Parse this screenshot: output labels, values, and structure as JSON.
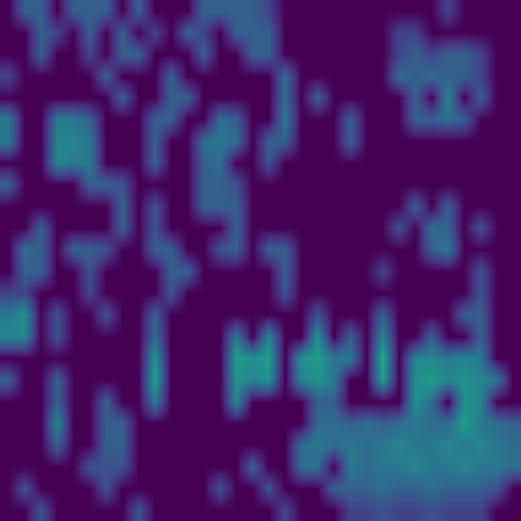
{
  "chart_data": {
    "type": "heatmap",
    "color": "Viridis",
    "tick_labels": false,
    "grid": false,
    "xlim": [
      -0.5,
      31.5
    ],
    "ylim": [
      23.5,
      -0.5
    ],
    "zlim": [
      0,
      1
    ],
    "cells": [
      [
        0,
        0.3,
        0.3,
        0,
        0.3,
        0.3,
        0.3,
        0,
        0.3,
        0,
        0,
        0,
        0.3,
        0.3,
        0.3,
        0.3,
        0.2,
        0,
        0,
        0,
        0,
        0,
        0,
        0,
        0,
        0,
        0,
        0.2,
        0,
        0,
        0,
        0
      ],
      [
        0,
        0,
        0.3,
        0.2,
        0,
        0.3,
        0,
        0.3,
        0,
        0.2,
        0,
        0.3,
        0.2,
        0,
        0.3,
        0.3,
        0.3,
        0,
        0,
        0,
        0,
        0,
        0,
        0,
        0.2,
        0.2,
        0,
        0,
        0,
        0,
        0,
        0
      ],
      [
        0,
        0,
        0.3,
        0,
        0,
        0.2,
        0,
        0.3,
        0.3,
        0,
        0,
        0,
        0.3,
        0,
        0,
        0.3,
        0.3,
        0,
        0,
        0,
        0,
        0,
        0,
        0,
        0.2,
        0.3,
        0.2,
        0.3,
        0.3,
        0.2,
        0,
        0
      ],
      [
        0.2,
        0,
        0,
        0,
        0,
        0,
        0.3,
        0,
        0,
        0,
        0.3,
        0,
        0,
        0,
        0,
        0,
        0,
        0.35,
        0,
        0,
        0,
        0,
        0,
        0,
        0.35,
        0.3,
        0.35,
        0.3,
        0.3,
        0.2,
        0,
        0
      ],
      [
        0,
        0,
        0,
        0,
        0,
        0,
        0,
        0.3,
        0,
        0,
        0.3,
        0.3,
        0,
        0,
        0,
        0,
        0,
        0.35,
        0,
        0.3,
        0,
        0,
        0,
        0,
        0,
        0.3,
        0,
        0.45,
        0,
        0.3,
        0,
        0
      ],
      [
        0.4,
        0,
        0,
        0.4,
        0.4,
        0.3,
        0,
        0,
        0,
        0.3,
        0.3,
        0,
        0,
        0.35,
        0.3,
        0,
        0,
        0.4,
        0,
        0,
        0,
        0.3,
        0,
        0,
        0,
        0.3,
        0.3,
        0.35,
        0.3,
        0,
        0,
        0
      ],
      [
        0.4,
        0,
        0,
        0.45,
        0.45,
        0.4,
        0,
        0,
        0,
        0.3,
        0,
        0,
        0.35,
        0.4,
        0.35,
        0,
        0.3,
        0.3,
        0,
        0,
        0,
        0.3,
        0,
        0,
        0,
        0,
        0,
        0,
        0,
        0,
        0,
        0
      ],
      [
        0,
        0,
        0,
        0.45,
        0.4,
        0.4,
        0,
        0,
        0,
        0.3,
        0,
        0,
        0.3,
        0.35,
        0,
        0,
        0.25,
        0,
        0,
        0,
        0,
        0,
        0,
        0,
        0,
        0,
        0,
        0,
        0,
        0,
        0,
        0
      ],
      [
        0.3,
        0,
        0,
        0,
        0,
        0.3,
        0.3,
        0.25,
        0,
        0,
        0,
        0,
        0.3,
        0.3,
        0.25,
        0,
        0,
        0,
        0,
        0,
        0,
        0,
        0,
        0,
        0,
        0,
        0,
        0,
        0,
        0,
        0,
        0
      ],
      [
        0,
        0,
        0,
        0,
        0,
        0,
        0,
        0.3,
        0,
        0.25,
        0,
        0,
        0.3,
        0.3,
        0.3,
        0,
        0,
        0,
        0,
        0,
        0,
        0,
        0,
        0,
        0,
        0.3,
        0,
        0.3,
        0,
        0,
        0,
        0
      ],
      [
        0,
        0,
        0.3,
        0,
        0,
        0,
        0,
        0.3,
        0,
        0.25,
        0,
        0,
        0,
        0,
        0.3,
        0,
        0,
        0,
        0,
        0,
        0,
        0,
        0,
        0,
        0.25,
        0,
        0.35,
        0.3,
        0,
        0.25,
        0,
        0
      ],
      [
        0,
        0.35,
        0.3,
        0,
        0.3,
        0.3,
        0.25,
        0,
        0,
        0.3,
        0.3,
        0,
        0,
        0.25,
        0.3,
        0,
        0.3,
        0.3,
        0,
        0,
        0,
        0,
        0,
        0,
        0,
        0,
        0.3,
        0.4,
        0,
        0,
        0,
        0
      ],
      [
        0,
        0.3,
        0.3,
        0,
        0,
        0.25,
        0,
        0,
        0,
        0,
        0.3,
        0.3,
        0,
        0,
        0,
        0,
        0,
        0.3,
        0,
        0,
        0,
        0,
        0,
        0.2,
        0,
        0,
        0,
        0,
        0,
        0.25,
        0,
        0
      ],
      [
        0.2,
        0.2,
        0,
        0,
        0,
        0.2,
        0,
        0,
        0,
        0,
        0.25,
        0,
        0,
        0,
        0,
        0,
        0,
        0.25,
        0,
        0,
        0,
        0,
        0,
        0,
        0,
        0,
        0,
        0,
        0,
        0.25,
        0,
        0
      ],
      [
        0.4,
        0.5,
        0,
        0.25,
        0,
        0,
        0.25,
        0,
        0,
        0.3,
        0,
        0,
        0,
        0,
        0,
        0,
        0,
        0,
        0,
        0.25,
        0,
        0,
        0,
        0.3,
        0,
        0,
        0,
        0,
        0.3,
        0.3,
        0,
        0
      ],
      [
        0.45,
        0.45,
        0,
        0.25,
        0,
        0,
        0,
        0,
        0,
        0.35,
        0,
        0,
        0,
        0,
        0.4,
        0,
        0.45,
        0,
        0,
        0.5,
        0,
        0.3,
        0,
        0.45,
        0,
        0,
        0.3,
        0,
        0,
        0.3,
        0,
        0
      ],
      [
        0,
        0,
        0,
        0,
        0,
        0,
        0,
        0,
        0,
        0.5,
        0,
        0,
        0,
        0,
        0.55,
        0.5,
        0.55,
        0,
        0.5,
        0.55,
        0.4,
        0.4,
        0,
        0.6,
        0,
        0.45,
        0.45,
        0.4,
        0.45,
        0.4,
        0,
        0
      ],
      [
        0.3,
        0,
        0,
        0.3,
        0,
        0,
        0,
        0,
        0,
        0.55,
        0,
        0,
        0,
        0,
        0.5,
        0.45,
        0.5,
        0,
        0.45,
        0.5,
        0.4,
        0,
        0,
        0.55,
        0,
        0.5,
        0.55,
        0.45,
        0.5,
        0.45,
        0.4,
        0
      ],
      [
        0,
        0,
        0,
        0.3,
        0,
        0,
        0.3,
        0,
        0,
        0.4,
        0,
        0,
        0,
        0,
        0.45,
        0,
        0,
        0,
        0,
        0.3,
        0.3,
        0,
        0,
        0,
        0,
        0.5,
        0.35,
        0,
        0.5,
        0.45,
        0,
        0
      ],
      [
        0,
        0,
        0,
        0.45,
        0,
        0,
        0.3,
        0.3,
        0,
        0,
        0,
        0,
        0,
        0,
        0,
        0,
        0,
        0,
        0,
        0.35,
        0.35,
        0.3,
        0.35,
        0.3,
        0.35,
        0.4,
        0.35,
        0.35,
        0.55,
        0.4,
        0.35,
        0.3
      ],
      [
        0,
        0,
        0,
        0.3,
        0,
        0,
        0.3,
        0.3,
        0,
        0,
        0,
        0,
        0,
        0,
        0,
        0,
        0,
        0,
        0.35,
        0.4,
        0.35,
        0.4,
        0.35,
        0.4,
        0.45,
        0.4,
        0.4,
        0.45,
        0.4,
        0.45,
        0.4,
        0.35
      ],
      [
        0,
        0,
        0,
        0,
        0,
        0.25,
        0.25,
        0.25,
        0,
        0,
        0,
        0,
        0,
        0,
        0,
        0.3,
        0,
        0,
        0.35,
        0.35,
        0,
        0.4,
        0.35,
        0.4,
        0.4,
        0.45,
        0.4,
        0.4,
        0.45,
        0.4,
        0.4,
        0.35
      ],
      [
        0,
        0.25,
        0,
        0,
        0,
        0,
        0.25,
        0,
        0,
        0,
        0,
        0,
        0,
        0.25,
        0,
        0,
        0.25,
        0,
        0,
        0,
        0.3,
        0.3,
        0.3,
        0.35,
        0.3,
        0.3,
        0.35,
        0.3,
        0.3,
        0.3,
        0.25,
        0
      ],
      [
        0,
        0,
        0.25,
        0,
        0,
        0,
        0,
        0,
        0.25,
        0,
        0,
        0,
        0,
        0,
        0,
        0,
        0,
        0.2,
        0,
        0,
        0,
        0.2,
        0.2,
        0.25,
        0.2,
        0.2,
        0.25,
        0.2,
        0.2,
        0.2,
        0,
        0
      ]
    ]
  }
}
